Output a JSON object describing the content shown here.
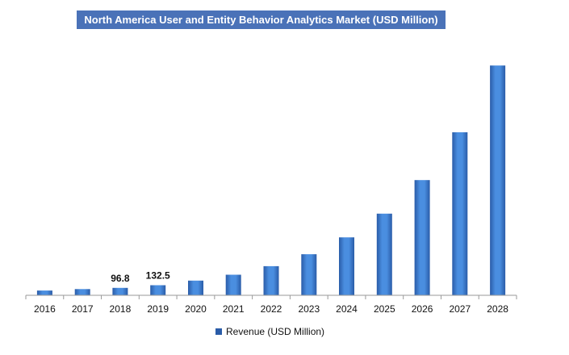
{
  "chart_data": {
    "type": "bar",
    "title": "North America User and Entity Behavior Analytics Market (USD Million)",
    "categories": [
      "2016",
      "2017",
      "2018",
      "2019",
      "2020",
      "2021",
      "2022",
      "2023",
      "2024",
      "2025",
      "2026",
      "2027",
      "2028"
    ],
    "series": [
      {
        "name": "Revenue (USD Million)",
        "values": [
          62,
          81,
          96.8,
          132.5,
          193,
          270,
          382,
          538,
          759,
          1070,
          1510,
          2138,
          3012
        ],
        "data_labels": [
          "",
          "",
          "96.8",
          "132.5",
          "",
          "",
          "",
          "",
          "",
          "",
          "",
          "",
          ""
        ]
      }
    ],
    "ylim": [
      0,
      3300
    ],
    "grid": false,
    "legend_position": "bottom",
    "colors": {
      "bar_light": "#4a8ee0",
      "bar_dark": "#2a5ca8",
      "title_bg": "#4a72b8"
    }
  }
}
